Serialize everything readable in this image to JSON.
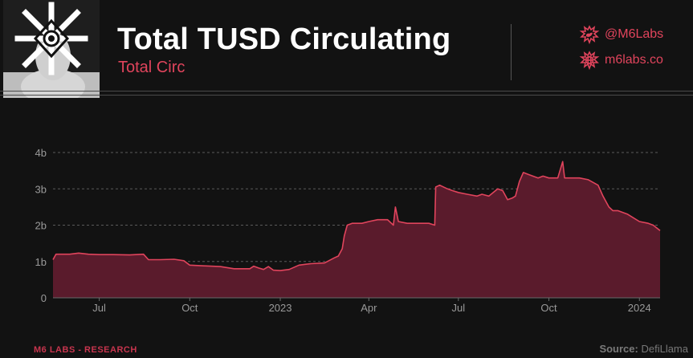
{
  "header": {
    "title": "Total TUSD Circulating",
    "subtitle": "Total Circ",
    "twitter_handle": "@M6Labs",
    "website": "m6labs.co",
    "logo_icon": "m6labs-avatar-logo"
  },
  "footer": {
    "brand": "M6 LABS - RESEARCH",
    "source_label": "Source:",
    "source_value": "DefiLlama"
  },
  "colors": {
    "accent": "#e0445c",
    "line": "#e0445c",
    "area_fill": "#5a1b2c",
    "background": "#121212"
  },
  "chart_data": {
    "type": "area",
    "title": "Total TUSD Circulating",
    "subtitle": "Total Circ",
    "xlabel": "",
    "ylabel": "",
    "ylim": [
      0,
      4000000000
    ],
    "y_ticks": [
      {
        "value": 0,
        "label": "0"
      },
      {
        "value": 1000000000,
        "label": "1b"
      },
      {
        "value": 2000000000,
        "label": "2b"
      },
      {
        "value": 3000000000,
        "label": "3b"
      },
      {
        "value": 4000000000,
        "label": "4b"
      }
    ],
    "x_range": [
      "2022-05-15",
      "2024-01-22"
    ],
    "x_ticks": [
      {
        "date": "2022-07-01",
        "label": "Jul"
      },
      {
        "date": "2022-10-01",
        "label": "Oct"
      },
      {
        "date": "2023-01-01",
        "label": "2023"
      },
      {
        "date": "2023-04-01",
        "label": "Apr"
      },
      {
        "date": "2023-07-01",
        "label": "Jul"
      },
      {
        "date": "2023-10-01",
        "label": "Oct"
      },
      {
        "date": "2024-01-01",
        "label": "2024"
      }
    ],
    "grid": "horizontal-dashed",
    "legend": "none",
    "series": [
      {
        "x": [
          "2022-05-15",
          "2022-05-18",
          "2022-06-01",
          "2022-06-10",
          "2022-06-20",
          "2022-07-01",
          "2022-07-15",
          "2022-08-01",
          "2022-08-15",
          "2022-08-20",
          "2022-09-01",
          "2022-09-15",
          "2022-09-25",
          "2022-10-01",
          "2022-10-15",
          "2022-11-01",
          "2022-11-15",
          "2022-12-01",
          "2022-12-05",
          "2022-12-10",
          "2022-12-15",
          "2022-12-20",
          "2022-12-25",
          "2023-01-01",
          "2023-01-10",
          "2023-01-20",
          "2023-02-01",
          "2023-02-15",
          "2023-02-25",
          "2023-03-01",
          "2023-03-05",
          "2023-03-07",
          "2023-03-10",
          "2023-03-15",
          "2023-03-25",
          "2023-04-01",
          "2023-04-10",
          "2023-04-20",
          "2023-04-26",
          "2023-04-28",
          "2023-05-01",
          "2023-05-10",
          "2023-05-20",
          "2023-06-01",
          "2023-06-07",
          "2023-06-08",
          "2023-06-12",
          "2023-06-20",
          "2023-06-25",
          "2023-07-01",
          "2023-07-10",
          "2023-07-20",
          "2023-07-25",
          "2023-08-01",
          "2023-08-10",
          "2023-08-15",
          "2023-08-20",
          "2023-08-25",
          "2023-08-28",
          "2023-09-01",
          "2023-09-05",
          "2023-09-10",
          "2023-09-20",
          "2023-09-25",
          "2023-10-01",
          "2023-10-10",
          "2023-10-15",
          "2023-10-17",
          "2023-10-20",
          "2023-11-01",
          "2023-11-10",
          "2023-11-20",
          "2023-11-25",
          "2023-12-01",
          "2023-12-05",
          "2023-12-10",
          "2023-12-20",
          "2024-01-01",
          "2024-01-10",
          "2024-01-15",
          "2024-01-22"
        ],
        "values": [
          1050000000,
          1200000000,
          1200000000,
          1230000000,
          1200000000,
          1190000000,
          1190000000,
          1180000000,
          1200000000,
          1050000000,
          1050000000,
          1060000000,
          1020000000,
          900000000,
          880000000,
          860000000,
          800000000,
          800000000,
          870000000,
          820000000,
          780000000,
          860000000,
          760000000,
          750000000,
          780000000,
          900000000,
          940000000,
          960000000,
          1100000000,
          1150000000,
          1350000000,
          1700000000,
          2000000000,
          2050000000,
          2050000000,
          2100000000,
          2150000000,
          2150000000,
          2000000000,
          2500000000,
          2100000000,
          2050000000,
          2050000000,
          2050000000,
          2000000000,
          3050000000,
          3100000000,
          3000000000,
          2950000000,
          2900000000,
          2850000000,
          2800000000,
          2850000000,
          2800000000,
          3000000000,
          2950000000,
          2700000000,
          2750000000,
          2800000000,
          3200000000,
          3450000000,
          3400000000,
          3300000000,
          3350000000,
          3300000000,
          3300000000,
          3750000000,
          3300000000,
          3300000000,
          3300000000,
          3250000000,
          3100000000,
          2800000000,
          2500000000,
          2400000000,
          2400000000,
          2300000000,
          2100000000,
          2050000000,
          2000000000,
          1850000000
        ]
      }
    ]
  }
}
